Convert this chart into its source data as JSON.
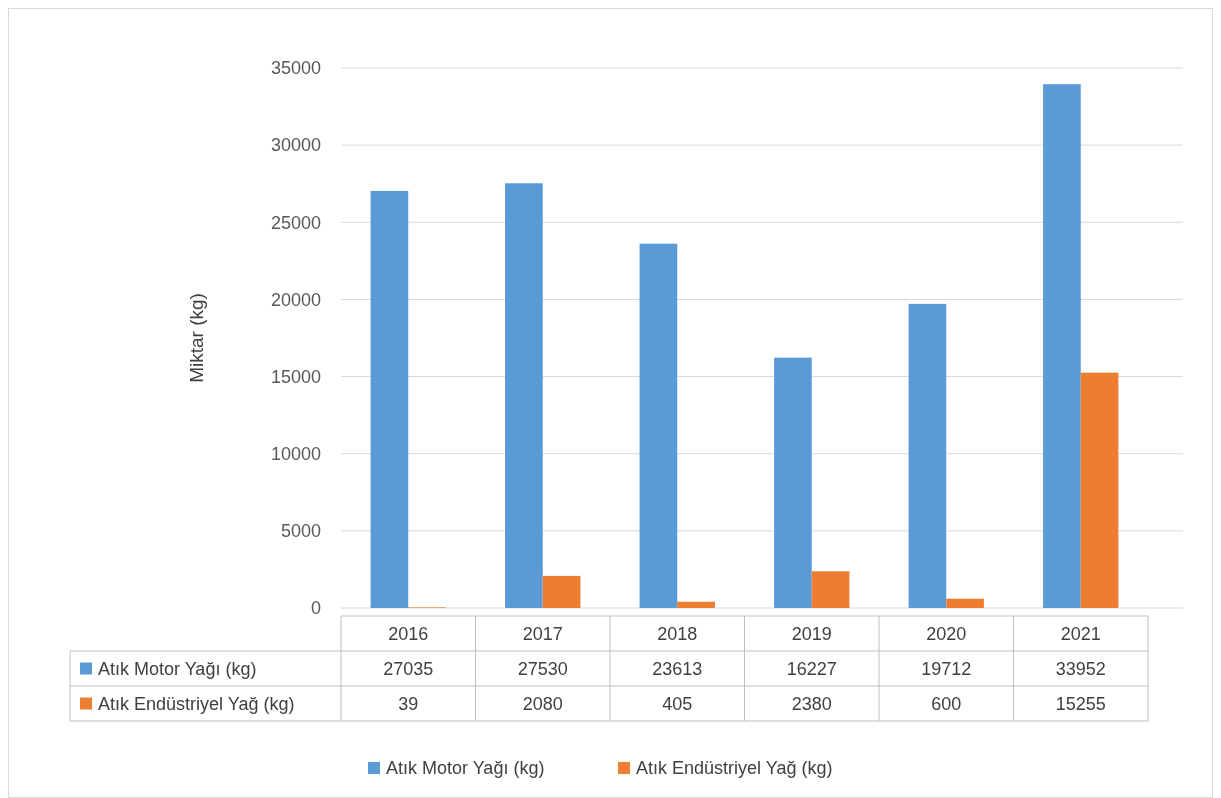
{
  "chart_data": {
    "type": "bar",
    "ylabel": "Miktar (kg)",
    "categories": [
      "2016",
      "2017",
      "2018",
      "2019",
      "2020",
      "2021"
    ],
    "series": [
      {
        "name": "Atık Motor Yağı (kg)",
        "color": "#5b9bd5",
        "values": [
          27035,
          27530,
          23613,
          16227,
          19712,
          33952
        ]
      },
      {
        "name": "Atık Endüstriyel Yağ (kg)",
        "color": "#ed7d31",
        "values": [
          39,
          2080,
          405,
          2380,
          600,
          15255
        ]
      }
    ],
    "ylim": [
      0,
      35000
    ],
    "yticks": [
      0,
      5000,
      10000,
      15000,
      20000,
      25000,
      30000,
      35000
    ],
    "grid": "y",
    "legend": "bottom",
    "data_labels": true
  }
}
